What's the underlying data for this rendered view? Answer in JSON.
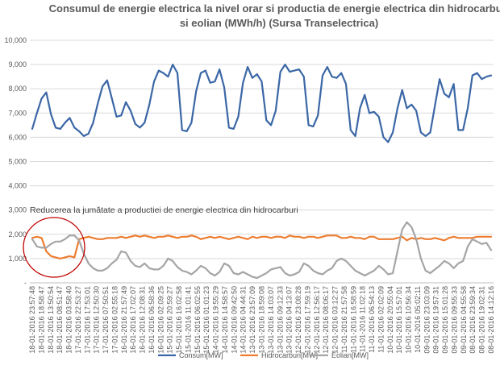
{
  "chart_data": {
    "type": "line",
    "title_line1": "Consumul de energie electrica la nivel orar si productia de energie electrica din hidrocarburi",
    "title_line2": "si eolian (MWh/h) (Sursa Transelectrica)",
    "annotation": "Reducerea la jumătate a productiei de energie electrica din hidrocarburi",
    "ylim": [
      0,
      10000
    ],
    "y_ticks": [
      "-",
      "1,000",
      "2,000",
      "3,000",
      "4,000",
      "5,000",
      "6,000",
      "7,000",
      "8,000",
      "9,000",
      "10,000"
    ],
    "x_labels": [
      "18-01-2016 23:57:48",
      "18-01-2016 18:58:47",
      "18-01-2016 13:50:54",
      "18-01-2016 08:51:47",
      "18-01-2016 03:58:40",
      "17-01-2016 22:53:27",
      "17-01-2016 17:53:01",
      "17-01-2016 12:50:30",
      "17-01-2016 07:50:51",
      "17-01-2016 02:55:18",
      "16-01-2016 21:57:49",
      "16-01-2016 17:02:07",
      "16-01-2016 12:08:31",
      "16-01-2016 06:58:36",
      "16-01-2016 02:09:25",
      "15-01-2016 20:59:27",
      "15-01-2016 16:02:58",
      "15-01-2016 11:01:41",
      "15-01-2016 06:02:55",
      "15-01-2016 01:01:23",
      "14-01-2016 19:55:29",
      "14-01-2016 14:58:57",
      "14-01-2016 09:42:50",
      "14-01-2016 04:44:31",
      "13-01-2016 23:57:09",
      "13-01-2016 18:59:08",
      "13-01-2016 14:03:07",
      "13-01-2016 09:12:33",
      "13-01-2016 04:13:07",
      "12-01-2016 23:08:28",
      "12-01-2016 17:59:19",
      "12-01-2016 12:56:17",
      "12-01-2016 08:06:17",
      "12-01-2016 03:12:27",
      "11-01-2016 21:57:58",
      "11-01-2016 16:58:59",
      "11-01-2016 11:02:18",
      "11-01-2016 06:54:13",
      "11-01-2016 02:02:09",
      "10-01-2016 20:55:04",
      "10-01-2016 15:57:01",
      "10-01-2016 10:56:34",
      "10-01-2016 05:02:11",
      "09-01-2016 23:03:09",
      "09-01-2016 19:57:31",
      "09-01-2016 15:01:28",
      "09-01-2016 09:55:33",
      "09-01-2016 04:55:58",
      "08-01-2016 23:59:34",
      "08-01-2016 19:02:31",
      "08-01-2016 14:12:16"
    ],
    "series": [
      {
        "name": "Consum[MW]",
        "color": "#3b67a6",
        "values": [
          6350,
          7000,
          7600,
          7850,
          6950,
          6400,
          6350,
          6600,
          6800,
          6400,
          6250,
          6050,
          6150,
          6600,
          7400,
          8100,
          8350,
          7600,
          6850,
          6900,
          7450,
          7100,
          6550,
          6400,
          6600,
          7350,
          8300,
          8750,
          8650,
          8500,
          9000,
          8650,
          6300,
          6250,
          6600,
          7900,
          8650,
          8750,
          8250,
          8300,
          8800,
          8050,
          6400,
          6350,
          6850,
          8250,
          8900,
          8450,
          8600,
          8300,
          6700,
          6500,
          7100,
          8700,
          9000,
          8700,
          8750,
          8800,
          8500,
          6500,
          6450,
          6900,
          8550,
          8900,
          8500,
          8450,
          8650,
          8200,
          6300,
          6050,
          7200,
          7750,
          7000,
          7050,
          6850,
          6000,
          5800,
          6200,
          7200,
          7950,
          7200,
          7350,
          7100,
          6200,
          6050,
          6200,
          7300,
          8400,
          7800,
          7650,
          8200,
          6300,
          6300,
          7200,
          8550,
          8650,
          8400,
          8500,
          8550
        ]
      },
      {
        "name": "Hidrocarburi[MW]",
        "color": "#ed7d31",
        "values": [
          1850,
          1900,
          1850,
          1300,
          1100,
          1050,
          1000,
          1050,
          1100,
          1050,
          1800,
          1850,
          1900,
          1850,
          1800,
          1800,
          1850,
          1850,
          1850,
          1900,
          1850,
          1900,
          1950,
          1900,
          1950,
          1900,
          1850,
          1900,
          1900,
          1950,
          1900,
          1850,
          1900,
          1900,
          1950,
          1900,
          1800,
          1850,
          1900,
          1850,
          1900,
          1850,
          1800,
          1850,
          1900,
          1850,
          1800,
          1900,
          1850,
          1900,
          1900,
          1850,
          1900,
          1900,
          1850,
          1950,
          1900,
          1900,
          1850,
          1900,
          1900,
          1850,
          1900,
          1950,
          1950,
          1950,
          1850,
          1850,
          1900,
          1850,
          1850,
          1800,
          1900,
          1900,
          1800,
          1800,
          1800,
          1800,
          1850,
          1900,
          1750,
          1850,
          1800,
          1850,
          1800,
          1800,
          1850,
          1800,
          1750,
          1850,
          1900,
          1850,
          1850,
          1850,
          1850,
          1900,
          1900,
          1900,
          1900
        ]
      },
      {
        "name": "Eolian[MW]",
        "color": "#a5a5a5",
        "values": [
          1800,
          1500,
          1450,
          1450,
          1600,
          1700,
          1700,
          1800,
          1950,
          1950,
          1750,
          1200,
          800,
          600,
          500,
          500,
          600,
          800,
          950,
          1300,
          1250,
          900,
          700,
          650,
          800,
          600,
          550,
          550,
          700,
          1000,
          900,
          650,
          500,
          450,
          350,
          500,
          700,
          600,
          400,
          300,
          450,
          800,
          700,
          400,
          350,
          450,
          350,
          250,
          200,
          300,
          400,
          550,
          600,
          650,
          400,
          300,
          350,
          450,
          800,
          700,
          500,
          400,
          350,
          500,
          600,
          900,
          1000,
          900,
          700,
          500,
          400,
          300,
          400,
          500,
          700,
          550,
          350,
          400,
          1300,
          2200,
          2500,
          2300,
          1800,
          1000,
          500,
          400,
          550,
          700,
          900,
          800,
          600,
          800,
          900,
          1500,
          1800,
          1700,
          1600,
          1650,
          1350
        ]
      }
    ]
  }
}
